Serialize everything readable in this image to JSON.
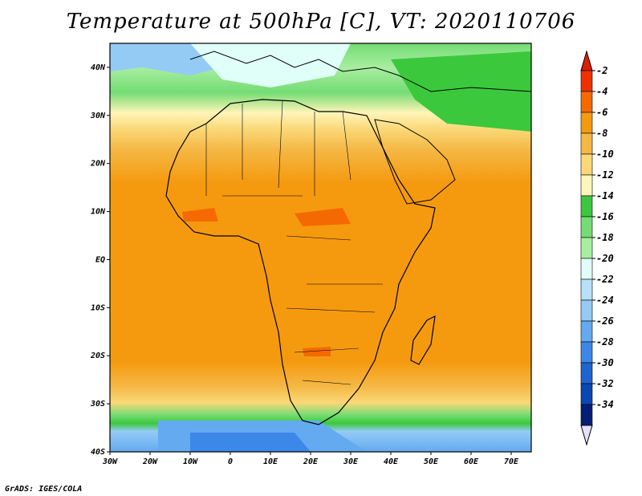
{
  "title": "Temperature at 500hPa [C], VT: 2020110706",
  "credit": "GrADS: IGES/COLA",
  "map": {
    "lon_range": [
      -30,
      75
    ],
    "lat_range": [
      -40,
      45
    ],
    "x_ticks": [
      {
        "lon": -30,
        "label": "30W"
      },
      {
        "lon": -20,
        "label": "20W"
      },
      {
        "lon": -10,
        "label": "10W"
      },
      {
        "lon": 0,
        "label": "0"
      },
      {
        "lon": 10,
        "label": "10E"
      },
      {
        "lon": 20,
        "label": "20E"
      },
      {
        "lon": 30,
        "label": "30E"
      },
      {
        "lon": 40,
        "label": "40E"
      },
      {
        "lon": 50,
        "label": "50E"
      },
      {
        "lon": 60,
        "label": "60E"
      },
      {
        "lon": 70,
        "label": "70E"
      }
    ],
    "y_ticks": [
      {
        "lat": 40,
        "label": "40N"
      },
      {
        "lat": 30,
        "label": "30N"
      },
      {
        "lat": 20,
        "label": "20N"
      },
      {
        "lat": 10,
        "label": "10N"
      },
      {
        "lat": 0,
        "label": "EQ"
      },
      {
        "lat": -10,
        "label": "10S"
      },
      {
        "lat": -20,
        "label": "20S"
      },
      {
        "lat": -30,
        "label": "30S"
      },
      {
        "lat": -40,
        "label": "40S"
      }
    ]
  },
  "colorbar": {
    "labels": [
      "-2",
      "-4",
      "-6",
      "-8",
      "-10",
      "-12",
      "-14",
      "-16",
      "-18",
      "-20",
      "-22",
      "-24",
      "-26",
      "-28",
      "-30",
      "-32",
      "-34"
    ],
    "colors": [
      "#f03000",
      "#f56a00",
      "#f59a0f",
      "#f5b845",
      "#fad878",
      "#fff5b8",
      "#3cc83c",
      "#74dc74",
      "#a8eea0",
      "#e0fff8",
      "#b8e0fa",
      "#94cbf5",
      "#64aaf0",
      "#3c88e8",
      "#1e64d2",
      "#0a46b4",
      "#041e78"
    ],
    "top_color": "#e02000",
    "bottom_color": "#e6e0fa"
  }
}
